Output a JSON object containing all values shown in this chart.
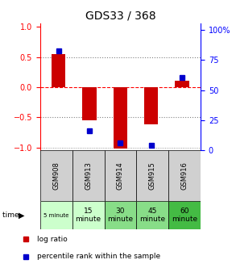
{
  "title": "GDS33 / 368",
  "samples": [
    "GSM908",
    "GSM913",
    "GSM914",
    "GSM915",
    "GSM916"
  ],
  "log_ratio": [
    0.55,
    -0.55,
    -1.02,
    -0.62,
    0.1
  ],
  "percentile": [
    80,
    14,
    4,
    2,
    58
  ],
  "time_labels": [
    "5 minute",
    "15\nminute",
    "30\nminute",
    "45\nminute",
    "60\nminute"
  ],
  "sample_bg": "#d0d0d0",
  "bar_color": "#cc0000",
  "dot_color": "#0000cc",
  "ylim_left": [
    -1.05,
    1.05
  ],
  "ylim_right": [
    0,
    105
  ],
  "yticks_left": [
    -1,
    -0.5,
    0,
    0.5,
    1
  ],
  "yticks_right": [
    0,
    25,
    50,
    75,
    100
  ],
  "ytick_labels_right": [
    "0",
    "25",
    "50",
    "75",
    "100%"
  ],
  "legend_log": "log ratio",
  "legend_pct": "percentile rank within the sample",
  "bg_color": "#ffffff",
  "time_colors": [
    "#ccffcc",
    "#ccffcc",
    "#88dd88",
    "#88dd88",
    "#44bb44"
  ]
}
